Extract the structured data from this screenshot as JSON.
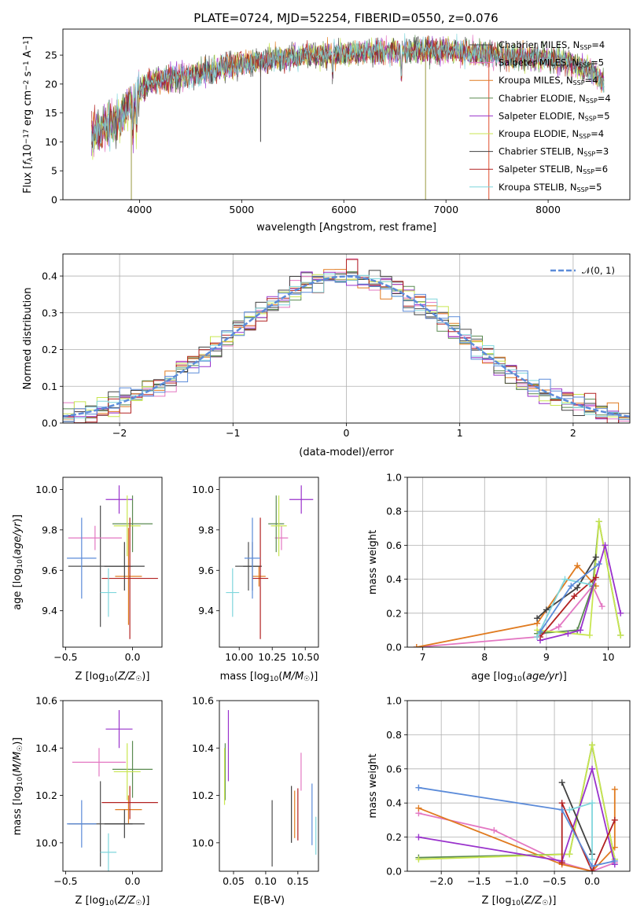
{
  "title": "PLATE=0724, MJD=52254, FIBERID=0550, z=0.076",
  "colors": {
    "c_miles": "#4d4d4d",
    "s_miles": "#e377c2",
    "k_miles": "#e07b20",
    "c_elodie": "#5a8a50",
    "s_elodie": "#9932cc",
    "k_elodie": "#c8e650",
    "c_stelib": "#404040",
    "s_stelib": "#b22222",
    "k_stelib": "#7fd6dc",
    "blue": "#5b8bd9",
    "grid": "#b0b0b0"
  },
  "chart_data": [
    {
      "type": "line",
      "name": "spectrum",
      "xlabel": "wavelength [Angstrom, rest frame]",
      "ylabel": "Flux [f_λ10^-17 erg cm^-2 s^-1 A^-1]",
      "xlim": [
        3250,
        8800
      ],
      "ylim": [
        0,
        29.5
      ],
      "xticks": [
        4000,
        5000,
        6000,
        7000,
        8000
      ],
      "yticks": [
        0,
        5,
        10,
        15,
        20,
        25
      ],
      "grid": false,
      "legend_position": "upper right",
      "continuum": [
        [
          3530,
          11
        ],
        [
          3650,
          12.5
        ],
        [
          3800,
          14
        ],
        [
          3950,
          17.5
        ],
        [
          4100,
          20.5
        ],
        [
          4300,
          21
        ],
        [
          4500,
          21.5
        ],
        [
          4800,
          22.8
        ],
        [
          5000,
          23.5
        ],
        [
          5200,
          24
        ],
        [
          5500,
          24.7
        ],
        [
          5800,
          25
        ],
        [
          6100,
          25.4
        ],
        [
          6400,
          25.6
        ],
        [
          6700,
          25.8
        ],
        [
          7000,
          25.8
        ],
        [
          7300,
          25.3
        ],
        [
          7600,
          24.8
        ],
        [
          7900,
          24.5
        ],
        [
          8200,
          23.8
        ],
        [
          8400,
          22.5
        ],
        [
          8550,
          20.5
        ]
      ],
      "series": [
        {
          "name": "Chabrier MILES, N_SSP=4",
          "label": "Chabrier MILES, N",
          "n": "=4",
          "color": "#4d4d4d"
        },
        {
          "name": "Salpeter MILES, N_SSP=5",
          "label": "Salpeter MILES, N",
          "n": "=5",
          "color": "#e377c2"
        },
        {
          "name": "Kroupa MILES, N_SSP=4",
          "label": "Kroupa MILES, N",
          "n": "=4",
          "color": "#e07b20"
        },
        {
          "name": "Chabrier ELODIE, N_SSP=4",
          "label": "Chabrier ELODIE, N",
          "n": "=4",
          "color": "#5a8a50"
        },
        {
          "name": "Salpeter ELODIE, N_SSP=5",
          "label": "Salpeter ELODIE, N",
          "n": "=5",
          "color": "#9932cc"
        },
        {
          "name": "Kroupa ELODIE, N_SSP=4",
          "label": "Kroupa ELODIE, N",
          "n": "=4",
          "color": "#c8e650"
        },
        {
          "name": "Chabrier STELIB, N_SSP=3",
          "label": "Chabrier STELIB, N",
          "n": "=3",
          "color": "#404040"
        },
        {
          "name": "Salpeter STELIB, N_SSP=6",
          "label": "Salpeter STELIB, N",
          "n": "=6",
          "color": "#b22222"
        },
        {
          "name": "Kroupa STELIB, N_SSP=5",
          "label": "Kroupa STELIB, N",
          "n": "=5",
          "color": "#7fd6dc"
        }
      ],
      "sub": "SSP"
    },
    {
      "type": "histogram",
      "name": "residuals",
      "xlabel": "(data-model)/error",
      "ylabel": "Normed distribution",
      "xlim": [
        -2.5,
        2.5
      ],
      "ylim": [
        0,
        0.46
      ],
      "xticks": [
        -2,
        -1,
        0,
        1,
        2
      ],
      "yticks": [
        0.0,
        0.1,
        0.2,
        0.3,
        0.4
      ],
      "grid": true,
      "legend": "𝒩(0, 1)",
      "legend_position": "upper right",
      "bin_width": 0.1
    },
    {
      "type": "errorbar",
      "name": "age-vs-Z",
      "xlabel": "Z [log10(Z/Z☉)]",
      "ylabel": "age  [log10(age/yr)]",
      "xlim": [
        -0.52,
        0.22
      ],
      "ylim": [
        9.22,
        10.06
      ],
      "xticks": [
        -0.5,
        0.0
      ],
      "yticks": [
        9.4,
        9.6,
        9.8,
        10.0
      ],
      "points": [
        {
          "x": -0.24,
          "y": 9.62,
          "xerr": 0.24,
          "yerr": 0.3,
          "color": "#4d4d4d"
        },
        {
          "x": -0.28,
          "y": 9.76,
          "xerr": 0.2,
          "yerr": 0.06,
          "color": "#e377c2"
        },
        {
          "x": -0.03,
          "y": 9.57,
          "xerr": 0.1,
          "yerr": 0.24,
          "color": "#e07b20"
        },
        {
          "x": 0.0,
          "y": 9.83,
          "xerr": 0.15,
          "yerr": 0.14,
          "color": "#5a8a50"
        },
        {
          "x": -0.1,
          "y": 9.95,
          "xerr": 0.1,
          "yerr": 0.07,
          "color": "#9932cc"
        },
        {
          "x": -0.04,
          "y": 9.82,
          "xerr": 0.1,
          "yerr": 0.15,
          "color": "#c8e650"
        },
        {
          "x": -0.06,
          "y": 9.62,
          "xerr": 0.15,
          "yerr": 0.12,
          "color": "#404040"
        },
        {
          "x": -0.02,
          "y": 9.56,
          "xerr": 0.21,
          "yerr": 0.3,
          "color": "#b22222"
        },
        {
          "x": -0.18,
          "y": 9.49,
          "xerr": 0.06,
          "yerr": 0.12,
          "color": "#7fd6dc"
        },
        {
          "x": -0.38,
          "y": 9.66,
          "xerr": 0.11,
          "yerr": 0.2,
          "color": "#5b8bd9"
        }
      ]
    },
    {
      "type": "errorbar",
      "name": "age-vs-mass",
      "xlabel": "mass [log10(M/M☉)]",
      "ylabel": "",
      "xlim": [
        9.85,
        10.6
      ],
      "ylim": [
        9.22,
        10.06
      ],
      "xticks": [
        10.0,
        10.25,
        10.5
      ],
      "yticks": [
        9.4,
        9.6,
        9.8,
        10.0
      ],
      "points": [
        {
          "x": 10.07,
          "y": 9.62,
          "xerr": 0.1,
          "yerr": 0.12,
          "color": "#4d4d4d"
        },
        {
          "x": 10.32,
          "y": 9.76,
          "xerr": 0.05,
          "yerr": 0.06,
          "color": "#e377c2"
        },
        {
          "x": 10.15,
          "y": 9.57,
          "xerr": 0.05,
          "yerr": 0.05,
          "color": "#e07b20"
        },
        {
          "x": 10.28,
          "y": 9.83,
          "xerr": 0.06,
          "yerr": 0.14,
          "color": "#5a8a50"
        },
        {
          "x": 10.47,
          "y": 9.95,
          "xerr": 0.09,
          "yerr": 0.07,
          "color": "#9932cc"
        },
        {
          "x": 10.3,
          "y": 9.82,
          "xerr": 0.06,
          "yerr": 0.15,
          "color": "#c8e650"
        },
        {
          "x": 10.1,
          "y": 9.62,
          "xerr": 0.07,
          "yerr": 0.12,
          "color": "#404040"
        },
        {
          "x": 10.16,
          "y": 9.56,
          "xerr": 0.06,
          "yerr": 0.3,
          "color": "#b22222"
        },
        {
          "x": 9.95,
          "y": 9.49,
          "xerr": 0.05,
          "yerr": 0.12,
          "color": "#7fd6dc"
        },
        {
          "x": 10.1,
          "y": 9.66,
          "xerr": 0.06,
          "yerr": 0.2,
          "color": "#5b8bd9"
        }
      ]
    },
    {
      "type": "line",
      "name": "weight-vs-age",
      "xlabel": "age  [log10(age/yr)]",
      "ylabel": "mass weight",
      "xlim": [
        6.75,
        10.35
      ],
      "ylim": [
        0,
        1.0
      ],
      "xticks": [
        7,
        8,
        9,
        10
      ],
      "yticks": [
        0.0,
        0.2,
        0.4,
        0.6,
        0.8,
        1.0
      ],
      "grid": true,
      "series": [
        {
          "color": "#e377c2",
          "points": [
            [
              6.9,
              0.0
            ],
            [
              8.85,
              0.06
            ],
            [
              9.2,
              0.12
            ],
            [
              9.75,
              0.36
            ],
            [
              9.9,
              0.24
            ]
          ]
        },
        {
          "color": "#e07b20",
          "points": [
            [
              6.9,
              0.0
            ],
            [
              8.85,
              0.14
            ],
            [
              9.5,
              0.48
            ],
            [
              9.8,
              0.36
            ]
          ]
        },
        {
          "color": "#5a8a50",
          "points": [
            [
              8.85,
              0.08
            ],
            [
              9.5,
              0.1
            ],
            [
              9.75,
              0.36
            ],
            [
              9.85,
              0.74
            ],
            [
              10.2,
              0.07
            ]
          ]
        },
        {
          "color": "#c8e650",
          "points": [
            [
              8.85,
              0.1
            ],
            [
              9.7,
              0.07
            ],
            [
              9.85,
              0.74
            ],
            [
              10.2,
              0.07
            ]
          ]
        },
        {
          "color": "#9932cc",
          "points": [
            [
              8.9,
              0.04
            ],
            [
              9.35,
              0.08
            ],
            [
              9.55,
              0.1
            ],
            [
              9.95,
              0.6
            ],
            [
              10.2,
              0.2
            ]
          ]
        },
        {
          "color": "#404040",
          "points": [
            [
              8.85,
              0.17
            ],
            [
              9.0,
              0.22
            ],
            [
              9.5,
              0.35
            ],
            [
              9.8,
              0.53
            ]
          ]
        },
        {
          "color": "#b22222",
          "points": [
            [
              8.9,
              0.06
            ],
            [
              9.45,
              0.3
            ],
            [
              9.8,
              0.41
            ]
          ]
        },
        {
          "color": "#7fd6dc",
          "points": [
            [
              8.85,
              0.06
            ],
            [
              9.3,
              0.4
            ],
            [
              9.7,
              0.37
            ]
          ]
        },
        {
          "color": "#5b8bd9",
          "points": [
            [
              8.9,
              0.09
            ],
            [
              9.4,
              0.36
            ],
            [
              9.85,
              0.49
            ]
          ]
        }
      ]
    },
    {
      "type": "errorbar",
      "name": "mass-vs-Z",
      "xlabel": "Z [log10(Z/Z☉)]",
      "ylabel": "mass [log10(M/M☉)]",
      "xlim": [
        -0.52,
        0.22
      ],
      "ylim": [
        9.88,
        10.6
      ],
      "xticks": [
        -0.5,
        0.0
      ],
      "yticks": [
        10.0,
        10.2,
        10.4,
        10.6
      ],
      "points": [
        {
          "x": -0.24,
          "y": 10.08,
          "xerr": 0.24,
          "yerr": 0.18,
          "color": "#4d4d4d"
        },
        {
          "x": -0.25,
          "y": 10.34,
          "xerr": 0.2,
          "yerr": 0.06,
          "color": "#e377c2"
        },
        {
          "x": -0.03,
          "y": 10.14,
          "xerr": 0.1,
          "yerr": 0.06,
          "color": "#e07b20"
        },
        {
          "x": 0.0,
          "y": 10.31,
          "xerr": 0.15,
          "yerr": 0.12,
          "color": "#5a8a50"
        },
        {
          "x": -0.1,
          "y": 10.48,
          "xerr": 0.1,
          "yerr": 0.08,
          "color": "#9932cc"
        },
        {
          "x": -0.04,
          "y": 10.3,
          "xerr": 0.1,
          "yerr": 0.12,
          "color": "#c8e650"
        },
        {
          "x": -0.06,
          "y": 10.08,
          "xerr": 0.15,
          "yerr": 0.06,
          "color": "#404040"
        },
        {
          "x": -0.02,
          "y": 10.17,
          "xerr": 0.21,
          "yerr": 0.07,
          "color": "#b22222"
        },
        {
          "x": -0.18,
          "y": 9.96,
          "xerr": 0.06,
          "yerr": 0.08,
          "color": "#7fd6dc"
        },
        {
          "x": -0.38,
          "y": 10.08,
          "xerr": 0.11,
          "yerr": 0.1,
          "color": "#5b8bd9"
        }
      ]
    },
    {
      "type": "errorbar",
      "name": "mass-vs-ebv",
      "xlabel": "E(B-V)",
      "ylabel": "",
      "xlim": [
        0.028,
        0.182
      ],
      "ylim": [
        9.88,
        10.6
      ],
      "xticks": [
        0.05,
        0.1,
        0.15
      ],
      "yticks": [
        10.0,
        10.2,
        10.4,
        10.6
      ],
      "points": [
        {
          "x": 0.11,
          "y": 10.04,
          "xerr": 0.0,
          "yerr": 0.14,
          "color": "#4d4d4d"
        },
        {
          "x": 0.155,
          "y": 10.3,
          "xerr": 0.0,
          "yerr": 0.08,
          "color": "#e377c2"
        },
        {
          "x": 0.145,
          "y": 10.12,
          "xerr": 0.0,
          "yerr": 0.1,
          "color": "#e07b20"
        },
        {
          "x": 0.037,
          "y": 10.3,
          "xerr": 0.0,
          "yerr": 0.12,
          "color": "#5a8a50"
        },
        {
          "x": 0.042,
          "y": 10.41,
          "xerr": 0.0,
          "yerr": 0.15,
          "color": "#9932cc"
        },
        {
          "x": 0.036,
          "y": 10.28,
          "xerr": 0.0,
          "yerr": 0.12,
          "color": "#c8e650"
        },
        {
          "x": 0.14,
          "y": 10.12,
          "xerr": 0.0,
          "yerr": 0.12,
          "color": "#404040"
        },
        {
          "x": 0.15,
          "y": 10.12,
          "xerr": 0.0,
          "yerr": 0.11,
          "color": "#b22222"
        },
        {
          "x": 0.178,
          "y": 10.03,
          "xerr": 0.0,
          "yerr": 0.08,
          "color": "#7fd6dc"
        },
        {
          "x": 0.172,
          "y": 10.12,
          "xerr": 0.0,
          "yerr": 0.13,
          "color": "#5b8bd9"
        }
      ]
    },
    {
      "type": "line",
      "name": "weight-vs-Z",
      "xlabel": "Z [log10(Z/Z☉)]",
      "ylabel": "mass weight",
      "xlim": [
        -2.45,
        0.5
      ],
      "ylim": [
        0,
        1.0
      ],
      "xticks": [
        -2.0,
        -1.5,
        -1.0,
        -0.5,
        0.0
      ],
      "yticks": [
        0.0,
        0.2,
        0.4,
        0.6,
        0.8,
        1.0
      ],
      "grid": true,
      "series": [
        {
          "color": "#e377c2",
          "points": [
            [
              -2.3,
              0.34
            ],
            [
              -1.3,
              0.24
            ],
            [
              -0.4,
              0.05
            ],
            [
              0.0,
              0.0
            ],
            [
              0.3,
              0.05
            ]
          ]
        },
        {
          "color": "#e07b20",
          "points": [
            [
              -2.3,
              0.37
            ],
            [
              -0.4,
              0.04
            ],
            [
              0.0,
              0.0
            ],
            [
              0.3,
              0.14
            ],
            [
              0.3,
              0.48
            ]
          ]
        },
        {
          "color": "#5a8a50",
          "points": [
            [
              -2.3,
              0.08
            ],
            [
              -0.3,
              0.1
            ],
            [
              0.0,
              0.74
            ],
            [
              0.3,
              0.07
            ]
          ]
        },
        {
          "color": "#c8e650",
          "points": [
            [
              -2.3,
              0.07
            ],
            [
              -0.3,
              0.1
            ],
            [
              0.0,
              0.74
            ],
            [
              0.3,
              0.07
            ]
          ]
        },
        {
          "color": "#9932cc",
          "points": [
            [
              -2.3,
              0.2
            ],
            [
              -0.4,
              0.06
            ],
            [
              0.0,
              0.6
            ],
            [
              0.3,
              0.04
            ]
          ]
        },
        {
          "color": "#404040",
          "points": [
            [
              -0.4,
              0.52
            ],
            [
              0.0,
              0.1
            ]
          ]
        },
        {
          "color": "#b22222",
          "points": [
            [
              -0.4,
              0.05
            ],
            [
              -0.4,
              0.4
            ],
            [
              0.0,
              0.0
            ],
            [
              0.3,
              0.3
            ]
          ]
        },
        {
          "color": "#7fd6dc",
          "points": [
            [
              -0.3,
              0.36
            ],
            [
              0.0,
              0.4
            ],
            [
              0.0,
              0.07
            ]
          ]
        },
        {
          "color": "#5b8bd9",
          "points": [
            [
              -2.3,
              0.49
            ],
            [
              -0.4,
              0.36
            ],
            [
              0.0,
              0.03
            ],
            [
              0.3,
              0.06
            ]
          ]
        }
      ]
    }
  ]
}
